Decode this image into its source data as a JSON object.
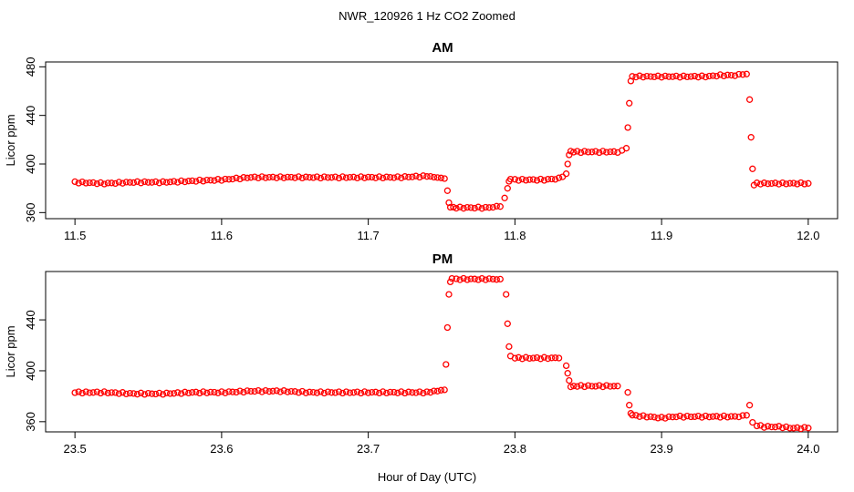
{
  "figure": {
    "title": "NWR_120926  1 Hz CO2 Zoomed",
    "xlabel": "Hour of Day (UTC)"
  },
  "chart_data": [
    {
      "type": "scatter",
      "title": "AM",
      "xlabel": "Hour of Day (UTC)",
      "ylabel": "Licor ppm",
      "xlim": [
        11.48,
        12.02
      ],
      "ylim": [
        355,
        484
      ],
      "xticks": [
        11.5,
        11.6,
        11.7,
        11.8,
        11.9,
        12.0
      ],
      "xtick_labels": [
        "11.5",
        "11.6",
        "11.7",
        "11.8",
        "11.9",
        "12.0"
      ],
      "yticks": [
        360,
        400,
        440,
        480
      ],
      "ytick_labels": [
        "360",
        "400",
        "440",
        "480"
      ],
      "marker": "open-circle",
      "color": "#ff0000",
      "series": [
        {
          "x": [
            11.5,
            11.52,
            11.54,
            11.56,
            11.58,
            11.6,
            11.62,
            11.64,
            11.66,
            11.68,
            11.7,
            11.72,
            11.74,
            11.752,
            11.754,
            11.755,
            11.756,
            11.758,
            11.76,
            11.77,
            11.78,
            11.79,
            11.793,
            11.795,
            11.796,
            11.797,
            11.8,
            11.81,
            11.82,
            11.83,
            11.835,
            11.836,
            11.837,
            11.838,
            11.84,
            11.85,
            11.86,
            11.87,
            11.876,
            11.877,
            11.878,
            11.879,
            11.88,
            11.89,
            11.9,
            11.91,
            11.92,
            11.93,
            11.94,
            11.95,
            11.958,
            11.96,
            11.961,
            11.962,
            11.963,
            11.965,
            11.97,
            11.98,
            11.99,
            12.0
          ],
          "y": [
            385,
            384,
            385,
            385,
            386,
            387,
            389,
            389,
            389,
            389,
            389,
            389,
            390,
            388,
            378,
            368,
            364,
            364,
            364,
            364,
            364,
            365,
            372,
            380,
            386,
            387,
            387,
            387,
            387,
            388,
            392,
            400,
            408,
            410,
            410,
            410,
            410,
            410,
            413,
            430,
            450,
            468,
            472,
            472,
            472,
            472,
            472,
            472,
            473,
            473,
            474,
            453,
            422,
            396,
            383,
            384,
            384,
            384,
            384,
            384
          ]
        }
      ]
    },
    {
      "type": "scatter",
      "title": "PM",
      "xlabel": "Hour of Day (UTC)",
      "ylabel": "Licor ppm",
      "xlim": [
        23.48,
        24.02
      ],
      "ylim": [
        352,
        478
      ],
      "xticks": [
        23.5,
        23.6,
        23.7,
        23.8,
        23.9,
        24.0
      ],
      "xtick_labels": [
        "23.5",
        "23.6",
        "23.7",
        "23.8",
        "23.9",
        "24.0"
      ],
      "yticks": [
        360,
        400,
        440
      ],
      "ytick_labels": [
        "360",
        "400",
        "440"
      ],
      "marker": "open-circle",
      "color": "#ff0000",
      "series": [
        {
          "x": [
            23.5,
            23.52,
            23.54,
            23.56,
            23.58,
            23.6,
            23.62,
            23.64,
            23.66,
            23.68,
            23.7,
            23.72,
            23.74,
            23.752,
            23.753,
            23.754,
            23.755,
            23.756,
            23.757,
            23.76,
            23.77,
            23.78,
            23.79,
            23.794,
            23.795,
            23.796,
            23.797,
            23.8,
            23.81,
            23.82,
            23.83,
            23.835,
            23.836,
            23.837,
            23.838,
            23.84,
            23.85,
            23.86,
            23.87,
            23.877,
            23.878,
            23.879,
            23.88,
            23.89,
            23.9,
            23.91,
            23.92,
            23.93,
            23.94,
            23.95,
            23.958,
            23.96,
            23.962,
            23.965,
            23.97,
            23.98,
            23.99,
            24.0
          ],
          "y": [
            383,
            383,
            382,
            382,
            383,
            383,
            384,
            384,
            383,
            383,
            383,
            383,
            383,
            385,
            405,
            434,
            460,
            470,
            472,
            472,
            472,
            472,
            472,
            460,
            437,
            419,
            412,
            410,
            410,
            410,
            410,
            404,
            398,
            392,
            388,
            388,
            388,
            388,
            388,
            383,
            373,
            367,
            365,
            364,
            363,
            364,
            364,
            364,
            364,
            364,
            365,
            373,
            360,
            357,
            356,
            356,
            355,
            355
          ]
        }
      ]
    }
  ]
}
